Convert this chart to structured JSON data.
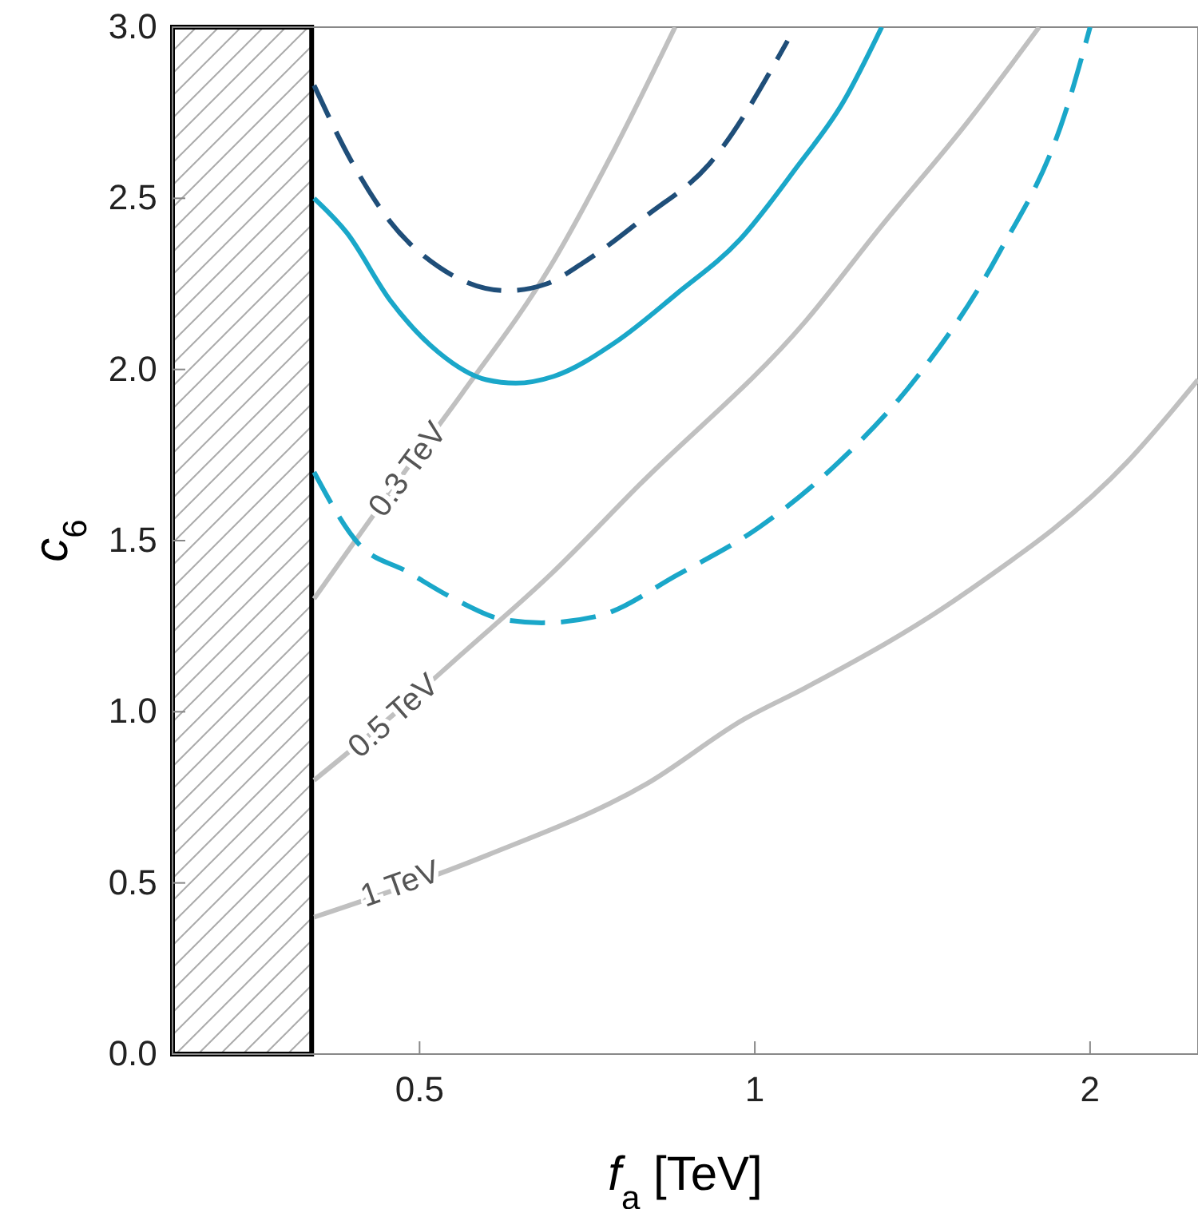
{
  "chart_data": {
    "type": "line",
    "xlabel": "f$_{a}$ [TeV]",
    "ylabel": "c$_{6}$",
    "log": "x",
    "xlim": [
      0.3,
      2.5
    ],
    "ylim": [
      0,
      3
    ],
    "xticks": [
      0.5,
      1,
      2
    ],
    "yticks": [
      {
        "value": 0,
        "label": "0.0"
      },
      {
        "value": 0.5,
        "label": "0.5"
      },
      {
        "value": 1,
        "label": "1.0"
      },
      {
        "value": 1.5,
        "label": "1.5"
      },
      {
        "value": 2,
        "label": "2.0"
      },
      {
        "value": 2.5,
        "label": "2.5"
      },
      {
        "value": 3,
        "label": "3.0"
      }
    ],
    "series": [
      {
        "color": "#c0c0c0",
        "line_style": "solid",
        "x": [
          0.402,
          0.574,
          0.8,
          0.98,
          1.11,
          1.55,
          2.16,
          2.5
        ],
        "values": [
          0.4,
          0.58,
          0.79,
          0.98,
          1.07,
          1.35,
          1.73,
          1.97
        ]
      },
      {
        "color": "#c0c0c0",
        "line_style": "solid",
        "x": [
          0.402,
          0.473,
          0.546,
          0.655,
          0.786,
          1.11,
          1.3,
          1.55,
          1.8
        ],
        "values": [
          0.8,
          0.99,
          1.17,
          1.4,
          1.66,
          2.14,
          2.42,
          2.72,
          3.0
        ]
      },
      {
        "color": "#c0c0c0",
        "line_style": "solid",
        "x": [
          0.402,
          0.487,
          0.546,
          0.655,
          0.75,
          0.848
        ],
        "values": [
          1.33,
          1.71,
          1.93,
          2.3,
          2.65,
          3.0
        ]
      },
      {
        "color": "#1f4e79",
        "line_style": "dashed",
        "x": [
          0.402,
          0.434,
          0.471,
          0.52,
          0.599,
          0.65,
          0.7,
          0.8,
          0.91,
          1.07
        ],
        "values": [
          2.83,
          2.61,
          2.43,
          2.3,
          2.23,
          2.25,
          2.31,
          2.45,
          2.6,
          2.96
        ]
      },
      {
        "color": "#1aa7c9",
        "line_style": "solid",
        "x": [
          0.402,
          0.43,
          0.471,
          0.52,
          0.574,
          0.61,
          0.66,
          0.75,
          0.85,
          0.97,
          1.09,
          1.2,
          1.3
        ],
        "values": [
          2.5,
          2.4,
          2.2,
          2.05,
          1.97,
          1.96,
          1.98,
          2.08,
          2.22,
          2.38,
          2.59,
          2.78,
          3.0
        ]
      },
      {
        "color": "#1aa7c9",
        "line_style": "dashed",
        "x": [
          0.402,
          0.441,
          0.487,
          0.537,
          0.594,
          0.644,
          0.724,
          0.852,
          1.01,
          1.19,
          1.4,
          1.65,
          1.9,
          2.0
        ],
        "values": [
          1.7,
          1.49,
          1.41,
          1.33,
          1.27,
          1.26,
          1.28,
          1.4,
          1.54,
          1.73,
          1.98,
          2.33,
          2.75,
          3.0
        ]
      }
    ],
    "bands": [
      {
        "axis": "x",
        "from": 0.3,
        "to": 0.4,
        "color": "#000000"
      }
    ],
    "annotations": [
      {
        "text": "0.3 TeV",
        "x": 0.487,
        "y": 1.71
      },
      {
        "text": "0.5 TeV",
        "x": 0.473,
        "y": 0.99
      },
      {
        "text": "1 TeV",
        "x": 0.48,
        "y": 0.5
      }
    ]
  }
}
